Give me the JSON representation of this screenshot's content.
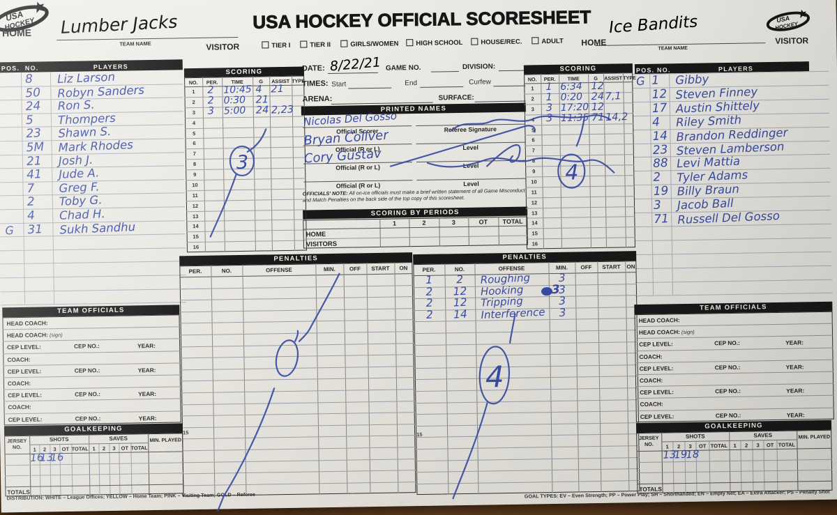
{
  "title": "USA HOCKEY OFFICIAL SCORESHEET",
  "ink_color": "#3a4da6",
  "header": {
    "home_label": "HOME",
    "visitor_label": "VISITOR",
    "team_name_label": "TEAM NAME",
    "home_team": "Lumber Jacks",
    "right_home_label": "HOME",
    "right_visitor_label": "VISITOR",
    "right_team": "Ice Bandits",
    "checkboxes": [
      "TIER I",
      "TIER II",
      "GIRLS/WOMEN",
      "HIGH SCHOOL",
      "HOUSE/REC.",
      "ADULT"
    ],
    "logo_text": "USA HOCKEY"
  },
  "roster_headers": {
    "pos": "POS.",
    "no": "NO.",
    "players": "PLAYERS"
  },
  "home_roster": [
    {
      "pos": "",
      "no": "8",
      "name": "Liz Larson"
    },
    {
      "pos": "",
      "no": "50",
      "name": "Robyn Sanders"
    },
    {
      "pos": "",
      "no": "24",
      "name": "Ron S."
    },
    {
      "pos": "",
      "no": "5",
      "name": "Thompers"
    },
    {
      "pos": "",
      "no": "23",
      "name": "Shawn S."
    },
    {
      "pos": "",
      "no": "5M",
      "name": "Mark Rhodes"
    },
    {
      "pos": "",
      "no": "21",
      "name": "Josh J."
    },
    {
      "pos": "",
      "no": "41",
      "name": "Jude A."
    },
    {
      "pos": "",
      "no": "7",
      "name": "Greg F."
    },
    {
      "pos": "",
      "no": "2",
      "name": "Toby G."
    },
    {
      "pos": "",
      "no": "4",
      "name": "Chad H."
    },
    {
      "pos": "G",
      "no": "31",
      "name": "Sukh Sandhu"
    }
  ],
  "visitor_roster": [
    {
      "pos": "G",
      "no": "1",
      "name": "Gibby"
    },
    {
      "pos": "",
      "no": "12",
      "name": "Steven Finney"
    },
    {
      "pos": "",
      "no": "17",
      "name": "Austin Shittely"
    },
    {
      "pos": "",
      "no": "4",
      "name": "Riley Smith"
    },
    {
      "pos": "",
      "no": "14",
      "name": "Brandon Reddinger"
    },
    {
      "pos": "",
      "no": "23",
      "name": "Steven Lamberson"
    },
    {
      "pos": "",
      "no": "88",
      "name": "Levi Mattia"
    },
    {
      "pos": "",
      "no": "2",
      "name": "Tyler Adams"
    },
    {
      "pos": "",
      "no": "19",
      "name": "Billy Braun"
    },
    {
      "pos": "",
      "no": "3",
      "name": "Jacob Ball"
    },
    {
      "pos": "",
      "no": "71",
      "name": "Russell Del Gosso"
    }
  ],
  "scoring": {
    "title": "SCORING",
    "columns": [
      "NO.",
      "PER.",
      "TIME",
      "G",
      "ASSIST",
      "TYPE"
    ],
    "row_count": 16,
    "home_entries": [
      {
        "per": "2",
        "time": "10:45",
        "g": "4",
        "assist": "21",
        "type": ""
      },
      {
        "per": "2",
        "time": "0:30",
        "g": "21",
        "assist": "",
        "type": ""
      },
      {
        "per": "3",
        "time": "5:00",
        "g": "24",
        "assist": "2,23",
        "type": ""
      }
    ],
    "home_circled_total": "3",
    "visitor_entries": [
      {
        "per": "1",
        "time": "6:34",
        "g": "12",
        "assist": "",
        "type": ""
      },
      {
        "per": "1",
        "time": "0:20",
        "g": "24",
        "assist": "7,1",
        "type": ""
      },
      {
        "per": "3",
        "time": "17:20",
        "g": "12",
        "assist": "",
        "type": ""
      },
      {
        "per": "3",
        "time": "11:35",
        "g": "71",
        "assist": "14,2",
        "type": ""
      }
    ],
    "visitor_circled_total": "4"
  },
  "center": {
    "date_label": "DATE:",
    "date_value": "8/22/21",
    "game_no_label": "GAME NO.",
    "division_label": "DIVISION:",
    "times_label": "TIMES:",
    "start_label": "Start",
    "end_label": "End",
    "curfew_label": "Curfew",
    "arena_label": "ARENA:",
    "surface_label": "SURFACE:",
    "printed_names_title": "PRINTED NAMES",
    "officials": [
      {
        "name": "Nicolas Del Gosso",
        "role": "Official Scorer",
        "right_label": "Referee Signature"
      },
      {
        "name": "Bryan Collver",
        "role": "Official (R or L)",
        "right_label": "Level"
      },
      {
        "name": "Cory Gustav",
        "role": "Official (R or L)",
        "right_label": "Level"
      },
      {
        "name": "",
        "role": "Official (R or L)",
        "right_label": "Level"
      }
    ],
    "note_bold": "OFFICIALS' NOTE:",
    "note_rest": " All on-ice officials must make a brief written statement of all Game Misconduct and Match Penalties on the back side of the top copy of this scoresheet.",
    "scoring_by_periods": {
      "title": "SCORING BY PERIODS",
      "columns": [
        "1",
        "2",
        "3",
        "OT",
        "TOTAL"
      ],
      "rows": [
        "HOME",
        "VISITORS"
      ]
    }
  },
  "penalties": {
    "title": "PENALTIES",
    "columns": [
      "PER.",
      "NO.",
      "OFFENSE",
      "MIN.",
      "OFF",
      "START",
      "ON"
    ],
    "home_entries": [],
    "home_circled_total": "0",
    "home_row_marker": "15",
    "visitor_entries": [
      {
        "per": "1",
        "no": "2",
        "offense": "Roughing",
        "min": "3"
      },
      {
        "per": "2",
        "no": "12",
        "offense": "Hooking",
        "min": "3"
      },
      {
        "per": "2",
        "no": "12",
        "offense": "Tripping",
        "min": "3"
      },
      {
        "per": "2",
        "no": "14",
        "offense": "Interference",
        "min": "3"
      }
    ],
    "visitor_circled_total": "4",
    "visitor_row_marker": "15"
  },
  "team_officials": {
    "title": "TEAM OFFICIALS",
    "rows": [
      {
        "type": "single",
        "label": "HEAD COACH:"
      },
      {
        "type": "sign",
        "label": "HEAD COACH:",
        "suffix": "(sign)"
      },
      {
        "type": "cep",
        "cep_level": "CEP LEVEL:",
        "cep_no": "CEP NO.:",
        "year": "YEAR:"
      },
      {
        "type": "single",
        "label": "COACH:"
      },
      {
        "type": "cep",
        "cep_level": "CEP LEVEL:",
        "cep_no": "CEP NO.:",
        "year": "YEAR:"
      },
      {
        "type": "single",
        "label": "COACH:"
      },
      {
        "type": "cep",
        "cep_level": "CEP LEVEL:",
        "cep_no": "CEP NO.:",
        "year": "YEAR:"
      },
      {
        "type": "single",
        "label": "COACH:"
      },
      {
        "type": "cep",
        "cep_level": "CEP LEVEL:",
        "cep_no": "CEP NO.:",
        "year": "YEAR:"
      }
    ]
  },
  "goalkeeping": {
    "title": "GOALKEEPING",
    "jersey_label": "JERSEY NO.",
    "shots_label": "SHOTS",
    "saves_label": "SAVES",
    "min_played_label": "MIN. PLAYED",
    "totals_label": "TOTALS",
    "period_columns": [
      "1",
      "2",
      "3",
      "OT",
      "TOTAL"
    ],
    "home_shots": [
      "16",
      "13",
      "16"
    ],
    "visitor_shots": [
      "13",
      "19",
      "18"
    ]
  },
  "footer": {
    "distribution": "DISTRIBUTION: WHITE – League Offices; YELLOW – Home Team; PINK – Visiting Team; GOLD – Referee",
    "goal_types": "GOAL TYPES: EV – Even Strength; PP – Power Play; SH – Shorthanded; EN – Empty Net; EA – Extra Attacker; PS – Penalty Shot"
  }
}
